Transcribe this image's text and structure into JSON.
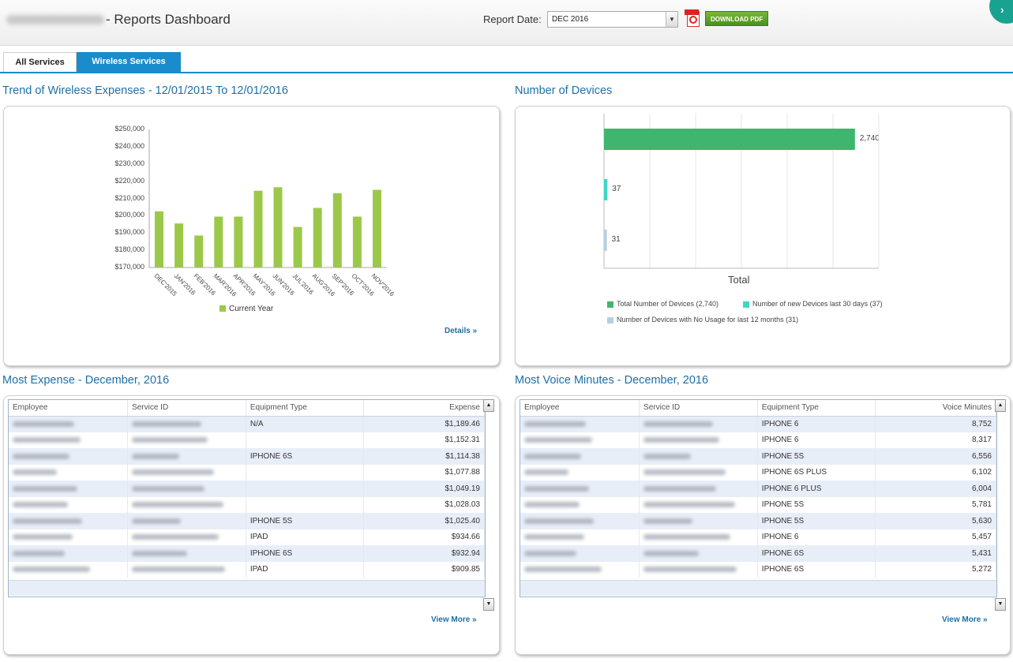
{
  "header": {
    "title": "- Reports Dashboard",
    "report_date_label": "Report Date:",
    "report_date_value": "DEC 2016",
    "download_label": "DOWNLOAD PDF"
  },
  "tabs": [
    {
      "label": "All Services",
      "active": false
    },
    {
      "label": "Wireless Services",
      "active": true
    }
  ],
  "expense_trend": {
    "title": "Trend of Wireless Expenses - 12/01/2015 To 12/01/2016",
    "details_label": "Details »",
    "chart_data": {
      "type": "bar",
      "categories": [
        "DEC'2015",
        "JAN'2016",
        "FEB'2016",
        "MAR'2016",
        "APR'2016",
        "MAY'2016",
        "JUN'2016",
        "JUL'2016",
        "AUG'2016",
        "SEP'2016",
        "OCT'2016",
        "NOV'2016"
      ],
      "series": [
        {
          "name": "Current Year",
          "values": [
            202500,
            195500,
            188500,
            199500,
            199500,
            214500,
            216500,
            193500,
            204500,
            213000,
            199500,
            215000
          ],
          "color": "#9cc84a"
        }
      ],
      "yticks": [
        "$250,000",
        "$240,000",
        "$230,000",
        "$220,000",
        "$210,000",
        "$200,000",
        "$190,000",
        "$180,000",
        "$170,000"
      ],
      "ylim": [
        170000,
        250000
      ],
      "legend_position": "bottom"
    }
  },
  "devices": {
    "title": "Number of Devices",
    "chart_data": {
      "type": "bar",
      "orientation": "horizontal",
      "xlabel": "Total",
      "xlim": [
        0,
        3000
      ],
      "series": [
        {
          "name": "Total Number of Devices (2,740)",
          "value": 2740,
          "label": "2,740",
          "color": "#3fb56e"
        },
        {
          "name": "Number of new Devices last 30 days (37)",
          "value": 37,
          "label": "37",
          "color": "#3fd6c9"
        },
        {
          "name": "Number of Devices with No Usage for last 12 months (31)",
          "value": 31,
          "label": "31",
          "color": "#b7cfe0"
        }
      ]
    }
  },
  "most_expense": {
    "title": "Most Expense - December, 2016",
    "columns": [
      "Employee",
      "Service ID",
      "Equipment Type",
      "Expense"
    ],
    "rows": [
      {
        "equipment": "N/A",
        "value": "$1,189.46"
      },
      {
        "equipment": "",
        "value": "$1,152.31"
      },
      {
        "equipment": "IPHONE 6S",
        "value": "$1,114.38"
      },
      {
        "equipment": "",
        "value": "$1,077.88"
      },
      {
        "equipment": "",
        "value": "$1,049.19"
      },
      {
        "equipment": "",
        "value": "$1,028.03"
      },
      {
        "equipment": "IPHONE 5S",
        "value": "$1,025.40"
      },
      {
        "equipment": "IPAD",
        "value": "$934.66"
      },
      {
        "equipment": "IPHONE 6S",
        "value": "$932.94"
      },
      {
        "equipment": "IPAD",
        "value": "$909.85"
      }
    ],
    "view_more": "View More »"
  },
  "most_voice": {
    "title": "Most Voice Minutes - December, 2016",
    "columns": [
      "Employee",
      "Service ID",
      "Equipment Type",
      "Voice Minutes"
    ],
    "rows": [
      {
        "equipment": "IPHONE 6",
        "value": "8,752"
      },
      {
        "equipment": "IPHONE 6",
        "value": "8,317"
      },
      {
        "equipment": "IPHONE 5S",
        "value": "6,556"
      },
      {
        "equipment": "IPHONE 6S PLUS",
        "value": "6,102"
      },
      {
        "equipment": "IPHONE 6 PLUS",
        "value": "6,004"
      },
      {
        "equipment": "IPHONE 5S",
        "value": "5,781"
      },
      {
        "equipment": "IPHONE 5S",
        "value": "5,630"
      },
      {
        "equipment": "IPHONE 6",
        "value": "5,457"
      },
      {
        "equipment": "IPHONE 6S",
        "value": "5,431"
      },
      {
        "equipment": "IPHONE 6S",
        "value": "5,272"
      }
    ],
    "view_more": "View More »"
  },
  "icons": {
    "dropdown": "chevron-down-icon",
    "pdf": "pdf-file-icon",
    "scroll_up": "scroll-up-icon",
    "scroll_down": "scroll-down-icon"
  },
  "colors": {
    "accent": "#1a8ccc",
    "section_title": "#1f6fa5",
    "expense_bar": "#9cc84a"
  }
}
